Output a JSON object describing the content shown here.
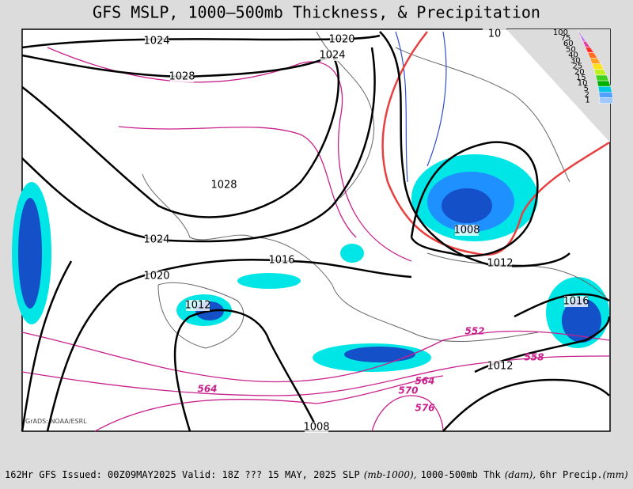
{
  "title": "GFS MSLP, 1000–500mb Thickness, & Precipitation",
  "credit": "GrADS: NOAA/ESRL",
  "pressure_labels": [
    "1024",
    "1020",
    "1024",
    "1028",
    "1028",
    "1024",
    "1016",
    "1020",
    "1012",
    "1008",
    "1012",
    "1016",
    "1012",
    "1008",
    "10"
  ],
  "thickness_labels": [
    "552",
    "558",
    "564",
    "570",
    "576",
    "564"
  ],
  "legend_labels": [
    "100",
    "75",
    "60",
    "50",
    "40",
    "30",
    "25",
    "20",
    "15",
    "10",
    "5",
    "2",
    "1"
  ],
  "footer": {
    "run": "162Hr GFS Issued: 00Z09MAY2025 Valid: 18Z ??? 15 MAY, 2025",
    "slp": "SLP",
    "slp_unit": "(mb-1000),",
    "thk": "1000-500mb Thk",
    "thk_unit": "(dam),",
    "precip": "6hr Precip.",
    "precip_unit": "(mm)"
  }
}
